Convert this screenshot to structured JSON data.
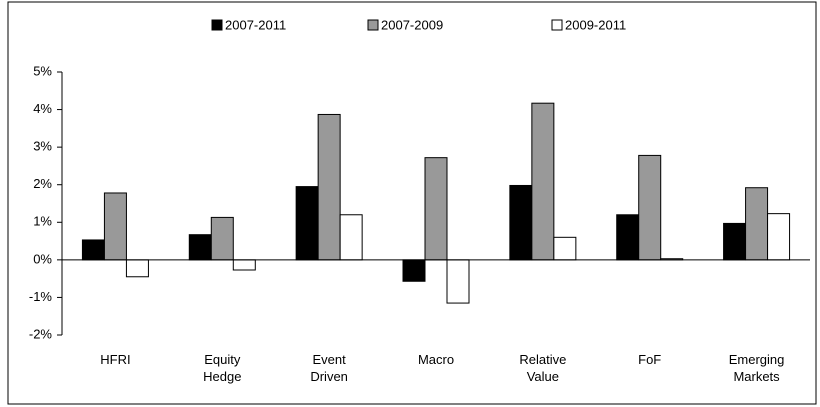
{
  "chart_data": {
    "type": "bar",
    "categories": [
      "HFRI",
      "Equity Hedge",
      "Event Driven",
      "Macro",
      "Relative Value",
      "FoF",
      "Emerging Markets"
    ],
    "series": [
      {
        "name": "2007-2011",
        "color": "#000000",
        "values": [
          0.53,
          0.67,
          1.95,
          -0.57,
          1.98,
          1.2,
          0.97
        ]
      },
      {
        "name": "2007-2009",
        "color": "#999999",
        "values": [
          1.78,
          1.13,
          3.87,
          2.72,
          4.17,
          2.78,
          1.92
        ]
      },
      {
        "name": "2009-2011",
        "color": "#ffffff",
        "values": [
          -0.45,
          -0.27,
          1.2,
          -1.15,
          0.6,
          0.03,
          1.23
        ]
      }
    ],
    "ylim": [
      -2,
      5
    ],
    "yticks": [
      {
        "value": -2,
        "label": "-2%"
      },
      {
        "value": -1,
        "label": "-1%"
      },
      {
        "value": 0,
        "label": "0%"
      },
      {
        "value": 1,
        "label": "1%"
      },
      {
        "value": 2,
        "label": "2%"
      },
      {
        "value": 3,
        "label": "3%"
      },
      {
        "value": 4,
        "label": "4%"
      },
      {
        "value": 5,
        "label": "5%"
      }
    ],
    "grid": false
  }
}
